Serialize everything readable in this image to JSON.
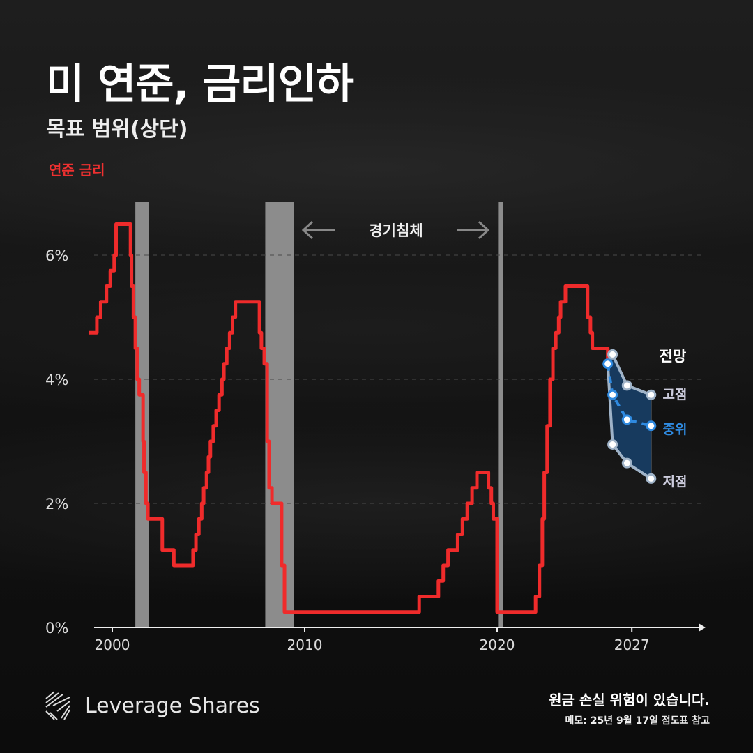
{
  "header": {
    "title": "미 연준, 금리인하",
    "subtitle": "목표 범위(상단)",
    "legend": "연준 금리"
  },
  "colors": {
    "rate": "#ef2b2b",
    "projection_band": "#173a5e",
    "median": "#2f8ae0",
    "bounds": "#9fb3c8",
    "recession": "#8c8c8c"
  },
  "chart_data": {
    "type": "line",
    "title": "미 연준, 금리인하",
    "subtitle": "목표 범위(상단)",
    "ylabel": "",
    "xlabel": "",
    "xlim": [
      1998.5,
      2029.5
    ],
    "ylim": [
      0,
      7
    ],
    "x_ticks": [
      {
        "v": 2000,
        "label": "2000"
      },
      {
        "v": 2010,
        "label": "2010"
      },
      {
        "v": 2020,
        "label": "2020"
      },
      {
        "v": 2027,
        "label": "2027"
      }
    ],
    "y_ticks": [
      {
        "v": 0,
        "label": "0%"
      },
      {
        "v": 2,
        "label": "2%"
      },
      {
        "v": 4,
        "label": "4%"
      },
      {
        "v": 6,
        "label": "6%"
      }
    ],
    "grid": true,
    "recession_label": "경기침체",
    "recessions": [
      [
        2001.2,
        2001.9
      ],
      [
        2007.95,
        2009.45
      ],
      [
        2020.05,
        2020.3
      ]
    ],
    "series": [
      {
        "name": "연준 금리",
        "step": true,
        "points": [
          [
            1998.8,
            4.75
          ],
          [
            1999.2,
            5.0
          ],
          [
            1999.4,
            5.25
          ],
          [
            1999.7,
            5.5
          ],
          [
            1999.9,
            5.75
          ],
          [
            2000.1,
            6.0
          ],
          [
            2000.2,
            6.5
          ],
          [
            2000.95,
            6.0
          ],
          [
            2001.0,
            5.5
          ],
          [
            2001.1,
            5.0
          ],
          [
            2001.2,
            4.5
          ],
          [
            2001.3,
            4.0
          ],
          [
            2001.4,
            3.75
          ],
          [
            2001.6,
            3.0
          ],
          [
            2001.65,
            2.5
          ],
          [
            2001.75,
            2.0
          ],
          [
            2001.85,
            1.75
          ],
          [
            2002.6,
            1.25
          ],
          [
            2003.2,
            1.0
          ],
          [
            2004.2,
            1.25
          ],
          [
            2004.35,
            1.5
          ],
          [
            2004.5,
            1.75
          ],
          [
            2004.65,
            2.0
          ],
          [
            2004.75,
            2.25
          ],
          [
            2004.9,
            2.5
          ],
          [
            2005.0,
            2.75
          ],
          [
            2005.1,
            3.0
          ],
          [
            2005.25,
            3.25
          ],
          [
            2005.4,
            3.5
          ],
          [
            2005.55,
            3.75
          ],
          [
            2005.7,
            4.0
          ],
          [
            2005.8,
            4.25
          ],
          [
            2005.95,
            4.5
          ],
          [
            2006.1,
            4.75
          ],
          [
            2006.25,
            5.0
          ],
          [
            2006.4,
            5.25
          ],
          [
            2007.65,
            4.75
          ],
          [
            2007.75,
            4.5
          ],
          [
            2007.9,
            4.25
          ],
          [
            2008.05,
            3.0
          ],
          [
            2008.15,
            2.25
          ],
          [
            2008.3,
            2.0
          ],
          [
            2008.8,
            1.0
          ],
          [
            2008.95,
            0.25
          ],
          [
            2015.95,
            0.5
          ],
          [
            2016.95,
            0.75
          ],
          [
            2017.2,
            1.0
          ],
          [
            2017.45,
            1.25
          ],
          [
            2017.95,
            1.5
          ],
          [
            2018.2,
            1.75
          ],
          [
            2018.45,
            2.0
          ],
          [
            2018.7,
            2.25
          ],
          [
            2018.95,
            2.5
          ],
          [
            2019.55,
            2.25
          ],
          [
            2019.7,
            2.0
          ],
          [
            2019.8,
            1.75
          ],
          [
            2020.0,
            0.25
          ],
          [
            2022.0,
            0.5
          ],
          [
            2022.2,
            1.0
          ],
          [
            2022.35,
            1.75
          ],
          [
            2022.45,
            2.5
          ],
          [
            2022.6,
            3.25
          ],
          [
            2022.75,
            4.0
          ],
          [
            2022.9,
            4.5
          ],
          [
            2023.05,
            4.75
          ],
          [
            2023.2,
            5.0
          ],
          [
            2023.3,
            5.25
          ],
          [
            2023.55,
            5.5
          ],
          [
            2024.7,
            5.0
          ],
          [
            2024.85,
            4.75
          ],
          [
            2024.95,
            4.5
          ],
          [
            2025.75,
            4.25
          ]
        ]
      }
    ],
    "projection": {
      "label": "전망",
      "high": {
        "name": "고점",
        "points": [
          [
            2025.75,
            4.25
          ],
          [
            2026,
            4.4
          ],
          [
            2026.75,
            3.9
          ],
          [
            2028,
            3.75
          ]
        ]
      },
      "median": {
        "name": "중위",
        "points": [
          [
            2025.75,
            4.25
          ],
          [
            2026,
            3.75
          ],
          [
            2026.75,
            3.35
          ],
          [
            2028,
            3.25
          ]
        ]
      },
      "low": {
        "name": "저점",
        "points": [
          [
            2025.75,
            4.25
          ],
          [
            2026,
            2.95
          ],
          [
            2026.75,
            2.65
          ],
          [
            2028,
            2.4
          ]
        ]
      }
    }
  },
  "footer": {
    "brand": "Leverage Shares",
    "warning": "원금 손실 위험이 있습니다.",
    "note": "메모: 25년 9월 17일 점도표 참고"
  }
}
